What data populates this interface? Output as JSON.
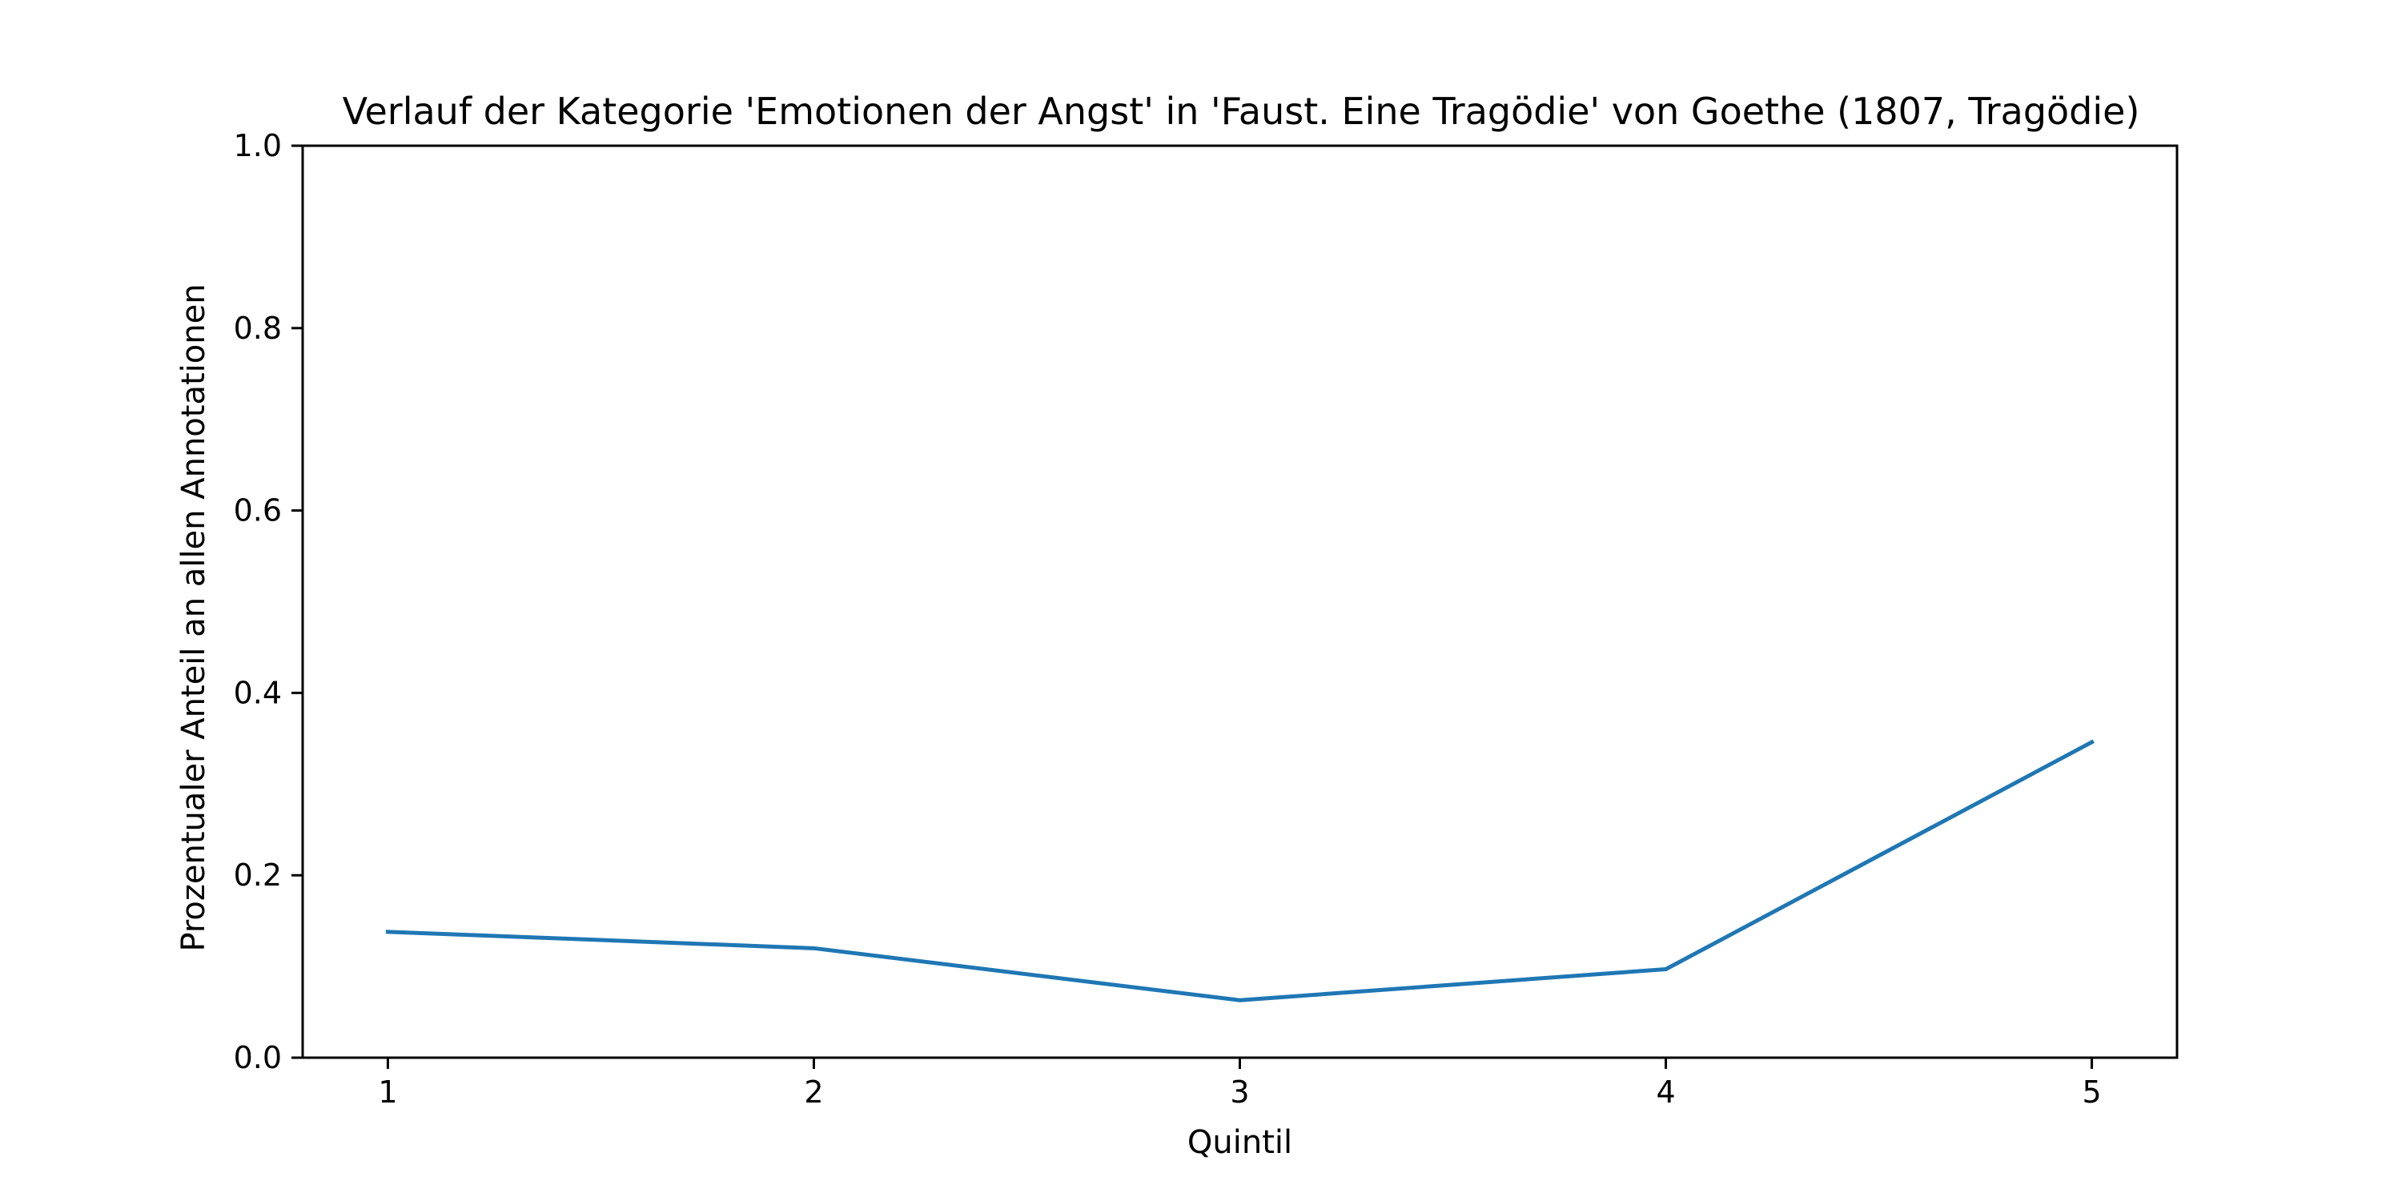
{
  "chart_data": {
    "type": "line",
    "title": "Verlauf der Kategorie 'Emotionen der Angst' in 'Faust. Eine Tragödie' von Goethe (1807, Tragödie)",
    "xlabel": "Quintil",
    "ylabel": "Prozentualer Anteil an allen Annotationen",
    "x": [
      1,
      2,
      3,
      4,
      5
    ],
    "x_tick_labels": [
      "1",
      "2",
      "3",
      "4",
      "5"
    ],
    "y_ticks": [
      0.0,
      0.2,
      0.4,
      0.6,
      0.8,
      1.0
    ],
    "y_tick_labels": [
      "0.0",
      "0.2",
      "0.4",
      "0.6",
      "0.8",
      "1.0"
    ],
    "xlim": [
      0.8,
      5.2
    ],
    "ylim": [
      0.0,
      1.0
    ],
    "grid": false,
    "series": [
      {
        "values": [
          0.138,
          0.12,
          0.063,
          0.097,
          0.346
        ],
        "color": "#1f77b4"
      }
    ]
  }
}
